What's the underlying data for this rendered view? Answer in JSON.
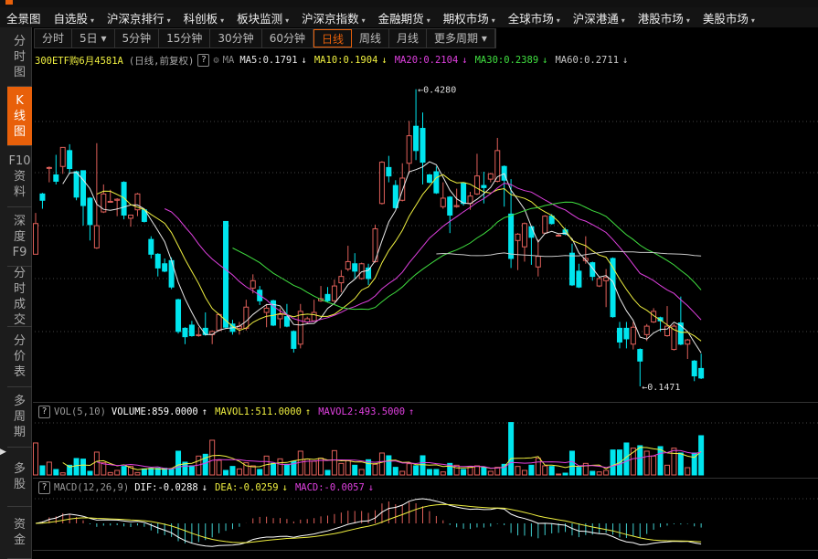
{
  "menu": [
    {
      "label": "全景图",
      "arrow": false
    },
    {
      "label": "自选股",
      "arrow": true
    },
    {
      "label": "沪深京排行",
      "arrow": true
    },
    {
      "label": "科创板",
      "arrow": true
    },
    {
      "label": "板块监测",
      "arrow": true
    },
    {
      "label": "沪深京指数",
      "arrow": true
    },
    {
      "label": "金融期货",
      "arrow": true
    },
    {
      "label": "期权市场",
      "arrow": true
    },
    {
      "label": "全球市场",
      "arrow": true
    },
    {
      "label": "沪深港通",
      "arrow": true
    },
    {
      "label": "港股市场",
      "arrow": true
    },
    {
      "label": "美股市场",
      "arrow": true
    }
  ],
  "sidebar": [
    {
      "label": "分\n时\n图",
      "active": false
    },
    {
      "label": "K\n线\n图",
      "active": true
    },
    {
      "label": "F10\n资\n料",
      "active": false
    },
    {
      "label": "深\n度\nF9",
      "active": false
    },
    {
      "label": "分\n时\n成\n交",
      "active": false
    },
    {
      "label": "分\n价\n表",
      "active": false
    },
    {
      "label": "多\n周\n期",
      "active": false
    },
    {
      "label": "多\n股",
      "active": false
    },
    {
      "label": "资\n金",
      "active": false
    }
  ],
  "tabs": [
    {
      "label": "分时"
    },
    {
      "label": "5日 ▾"
    },
    {
      "label": "5分钟"
    },
    {
      "label": "15分钟"
    },
    {
      "label": "30分钟"
    },
    {
      "label": "60分钟"
    },
    {
      "label": "日线",
      "active": true
    },
    {
      "label": "周线"
    },
    {
      "label": "月线"
    },
    {
      "label": "更多周期 ▾"
    }
  ],
  "info": {
    "title": "300ETF购6月4581A",
    "mode": "(日线,前复权)",
    "help": "?",
    "ma_label": "MA",
    "ma": [
      {
        "text": "MA5:0.1791",
        "arrow": "↓",
        "color": "#e8e8e8"
      },
      {
        "text": "MA10:0.1904",
        "arrow": "↓",
        "color": "#f0f040"
      },
      {
        "text": "MA20:0.2104",
        "arrow": "↓",
        "color": "#e040e0"
      },
      {
        "text": "MA30:0.2389",
        "arrow": "↓",
        "color": "#40e040"
      },
      {
        "text": "MA60:0.2711",
        "arrow": "↓",
        "color": "#c8c8c8"
      }
    ]
  },
  "vol": {
    "label": "VOL(5,10)",
    "items": [
      {
        "text": "VOLUME:859.0000",
        "arrow": "↑",
        "color": "#ffffff"
      },
      {
        "text": "MAVOL1:511.0000",
        "arrow": "↑",
        "color": "#f0f040"
      },
      {
        "text": "MAVOL2:493.5000",
        "arrow": "↑",
        "color": "#e040e0"
      }
    ]
  },
  "macd": {
    "label": "MACD(12,26,9)",
    "items": [
      {
        "text": "DIF:-0.0288",
        "arrow": "↓",
        "color": "#ffffff"
      },
      {
        "text": "DEA:-0.0259",
        "arrow": "↓",
        "color": "#f0f040"
      },
      {
        "text": "MACD:-0.0057",
        "arrow": "↓",
        "color": "#e040e0"
      }
    ]
  },
  "colors": {
    "up": "#e0605a",
    "down": "#00e5ee",
    "accent": "#e8600a",
    "ma5": "#e8e8e8",
    "ma10": "#f0f040",
    "ma20": "#e040e0",
    "ma30": "#40e040",
    "ma60": "#c8c8c8"
  },
  "chart_data": {
    "type": "candlestick",
    "ylim": [
      0.1324,
      0.445
    ],
    "annotations": [
      {
        "text": "0.4280",
        "value": 0.428,
        "index": 57
      },
      {
        "text": "0.1471",
        "value": 0.1471,
        "index": 90
      }
    ],
    "ohlc": [
      [
        0.272,
        0.311,
        0.272,
        0.301
      ],
      [
        0.329,
        0.33,
        0.315,
        0.323
      ],
      [
        0.354,
        0.355,
        0.34,
        0.354
      ],
      [
        0.347,
        0.366,
        0.338,
        0.341
      ],
      [
        0.355,
        0.373,
        0.348,
        0.373
      ],
      [
        0.37,
        0.376,
        0.348,
        0.353
      ],
      [
        0.35,
        0.351,
        0.323,
        0.326
      ],
      [
        0.351,
        0.351,
        0.299,
        0.318
      ],
      [
        0.325,
        0.326,
        0.285,
        0.3
      ],
      [
        0.278,
        0.377,
        0.277,
        0.299
      ],
      [
        0.312,
        0.338,
        0.311,
        0.329
      ],
      [
        0.322,
        0.333,
        0.321,
        0.322
      ],
      [
        0.323,
        0.325,
        0.308,
        0.324
      ],
      [
        0.34,
        0.341,
        0.305,
        0.309
      ],
      [
        0.306,
        0.309,
        0.298,
        0.309
      ],
      [
        0.314,
        0.33,
        0.308,
        0.329
      ],
      [
        0.314,
        0.315,
        0.302,
        0.303
      ],
      [
        0.286,
        0.289,
        0.268,
        0.272
      ],
      [
        0.272,
        0.273,
        0.251,
        0.259
      ],
      [
        0.263,
        0.268,
        0.255,
        0.256
      ],
      [
        0.266,
        0.269,
        0.239,
        0.241
      ],
      [
        0.229,
        0.23,
        0.197,
        0.199
      ],
      [
        0.202,
        0.203,
        0.187,
        0.194
      ],
      [
        0.205,
        0.209,
        0.194,
        0.195
      ],
      [
        0.195,
        0.203,
        0.194,
        0.196
      ],
      [
        0.202,
        0.217,
        0.195,
        0.196
      ],
      [
        0.196,
        0.2,
        0.187,
        0.199
      ],
      [
        0.2,
        0.216,
        0.199,
        0.215
      ],
      [
        0.303,
        0.303,
        0.202,
        0.203
      ],
      [
        0.206,
        0.21,
        0.196,
        0.199
      ],
      [
        0.202,
        0.208,
        0.196,
        0.204
      ],
      [
        0.202,
        0.229,
        0.2,
        0.222
      ],
      [
        0.24,
        0.253,
        0.235,
        0.247
      ],
      [
        0.238,
        0.242,
        0.224,
        0.228
      ],
      [
        0.217,
        0.225,
        0.203,
        0.221
      ],
      [
        0.228,
        0.229,
        0.204,
        0.205
      ],
      [
        0.211,
        0.221,
        0.202,
        0.215
      ],
      [
        0.213,
        0.225,
        0.203,
        0.204
      ],
      [
        0.199,
        0.2,
        0.179,
        0.183
      ],
      [
        0.187,
        0.225,
        0.183,
        0.218
      ],
      [
        0.208,
        0.213,
        0.206,
        0.211
      ],
      [
        0.209,
        0.229,
        0.208,
        0.217
      ],
      [
        0.228,
        0.242,
        0.227,
        0.23
      ],
      [
        0.234,
        0.241,
        0.227,
        0.228
      ],
      [
        0.228,
        0.248,
        0.227,
        0.242
      ],
      [
        0.245,
        0.257,
        0.236,
        0.251
      ],
      [
        0.258,
        0.28,
        0.256,
        0.265
      ],
      [
        0.263,
        0.273,
        0.249,
        0.256
      ],
      [
        0.249,
        0.264,
        0.248,
        0.263
      ],
      [
        0.259,
        0.263,
        0.243,
        0.249
      ],
      [
        0.265,
        0.3,
        0.264,
        0.296
      ],
      [
        0.32,
        0.36,
        0.319,
        0.359
      ],
      [
        0.354,
        0.365,
        0.34,
        0.346
      ],
      [
        0.337,
        0.342,
        0.315,
        0.316
      ],
      [
        0.323,
        0.358,
        0.322,
        0.344
      ],
      [
        0.358,
        0.398,
        0.348,
        0.384
      ],
      [
        0.393,
        0.428,
        0.361,
        0.37
      ],
      [
        0.391,
        0.406,
        0.338,
        0.359
      ],
      [
        0.347,
        0.348,
        0.339,
        0.34
      ],
      [
        0.35,
        0.355,
        0.329,
        0.33
      ],
      [
        0.317,
        0.34,
        0.315,
        0.325
      ],
      [
        0.326,
        0.327,
        0.292,
        0.309
      ],
      [
        0.317,
        0.334,
        0.316,
        0.318
      ],
      [
        0.339,
        0.34,
        0.318,
        0.32
      ],
      [
        0.32,
        0.331,
        0.314,
        0.327
      ],
      [
        0.329,
        0.367,
        0.328,
        0.346
      ],
      [
        0.337,
        0.35,
        0.32,
        0.335
      ],
      [
        0.343,
        0.349,
        0.34,
        0.348
      ],
      [
        0.341,
        0.382,
        0.34,
        0.37
      ],
      [
        0.355,
        0.356,
        0.317,
        0.342
      ],
      [
        0.31,
        0.343,
        0.259,
        0.268
      ],
      [
        0.285,
        0.292,
        0.257,
        0.291
      ],
      [
        0.279,
        0.302,
        0.265,
        0.301
      ],
      [
        0.298,
        0.299,
        0.262,
        0.288
      ],
      [
        0.26,
        0.286,
        0.251,
        0.27
      ],
      [
        0.292,
        0.309,
        0.291,
        0.308
      ],
      [
        0.308,
        0.31,
        0.3,
        0.301
      ],
      [
        0.29,
        0.291,
        0.289,
        0.29
      ],
      [
        0.295,
        0.297,
        0.29,
        0.291
      ],
      [
        0.273,
        0.282,
        0.242,
        0.243
      ],
      [
        0.256,
        0.263,
        0.24,
        0.241
      ],
      [
        0.266,
        0.289,
        0.263,
        0.268
      ],
      [
        0.264,
        0.265,
        0.247,
        0.251
      ],
      [
        0.242,
        0.25,
        0.241,
        0.249
      ],
      [
        0.247,
        0.258,
        0.222,
        0.25
      ],
      [
        0.268,
        0.269,
        0.212,
        0.213
      ],
      [
        0.202,
        0.208,
        0.183,
        0.189
      ],
      [
        0.202,
        0.208,
        0.183,
        0.192
      ],
      [
        0.187,
        0.208,
        0.182,
        0.203
      ],
      [
        0.182,
        0.183,
        0.1471,
        0.171
      ],
      [
        0.196,
        0.206,
        0.19,
        0.204
      ],
      [
        0.208,
        0.221,
        0.207,
        0.218
      ],
      [
        0.212,
        0.213,
        0.199,
        0.209
      ],
      [
        0.195,
        0.223,
        0.194,
        0.204
      ],
      [
        0.182,
        0.206,
        0.181,
        0.204
      ],
      [
        0.207,
        0.232,
        0.186,
        0.187
      ],
      [
        0.187,
        0.192,
        0.173,
        0.191
      ],
      [
        0.171,
        0.172,
        0.152,
        0.157
      ],
      [
        0.164,
        0.178,
        0.154,
        0.155
      ]
    ],
    "volume": [
      700,
      200,
      280,
      120,
      47,
      213,
      360,
      347,
      80,
      500,
      267,
      53,
      100,
      187,
      187,
      53,
      133,
      147,
      147,
      147,
      133,
      520,
      280,
      200,
      413,
      453,
      760,
      320,
      100,
      187,
      133,
      267,
      200,
      120,
      413,
      253,
      353,
      233,
      300,
      520,
      347,
      300,
      367,
      100,
      533,
      253,
      320,
      213,
      120,
      333,
      233,
      480,
      420,
      167,
      80,
      247,
      200,
      420,
      120,
      120,
      67,
      253,
      213,
      120,
      167,
      200,
      167,
      80,
      167,
      233,
      1147,
      187,
      100,
      213,
      367,
      200,
      187,
      20,
      40,
      520,
      167,
      253,
      80,
      67,
      100,
      547,
      547,
      700,
      587,
      640,
      520,
      413,
      620,
      213,
      587,
      480,
      160,
      480,
      859
    ]
  }
}
